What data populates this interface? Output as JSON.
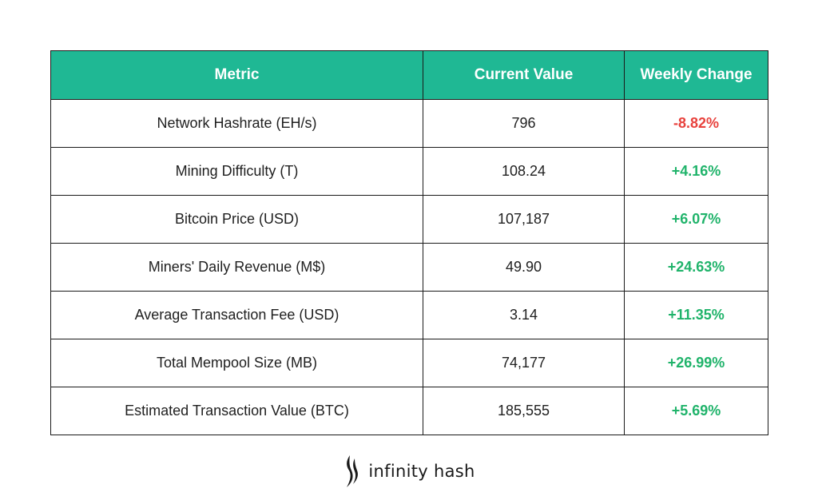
{
  "chart_data": {
    "type": "table",
    "columns": [
      "Metric",
      "Current Value",
      "Weekly Change"
    ],
    "rows": [
      {
        "metric": "Network Hashrate (EH/s)",
        "value": "796",
        "change": "-8.82%"
      },
      {
        "metric": "Mining Difficulty (T)",
        "value": "108.24",
        "change": "+4.16%"
      },
      {
        "metric": "Bitcoin Price (USD)",
        "value": "107,187",
        "change": "+6.07%"
      },
      {
        "metric": "Miners' Daily Revenue (M$)",
        "value": "49.90",
        "change": "+24.63%"
      },
      {
        "metric": "Average Transaction Fee (USD)",
        "value": "3.14",
        "change": "+11.35%"
      },
      {
        "metric": "Total Mempool Size (MB)",
        "value": "74,177",
        "change": "+26.99%"
      },
      {
        "metric": "Estimated Transaction Value (BTC)",
        "value": "185,555",
        "change": "+5.69%"
      }
    ]
  },
  "colors": {
    "header_bg": "#1fb894",
    "positive": "#1fb36a",
    "negative": "#e8413c"
  },
  "brand": {
    "name": "infinity hash",
    "icon": "flame-logo-icon"
  }
}
